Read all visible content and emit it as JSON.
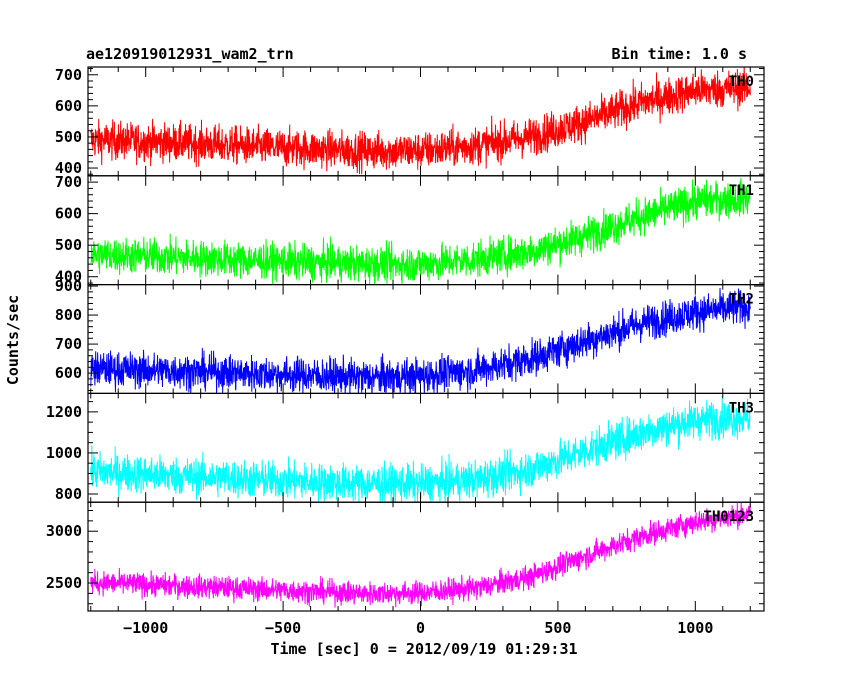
{
  "header": {
    "left_title": "ae120919012931_wam2_trn",
    "right_title": "Bin time: 1.0 s"
  },
  "chart_data": {
    "type": "line",
    "xlabel": "Time [sec] 0 = 2012/09/19 01:29:31",
    "ylabel": "Counts/sec",
    "xlim": [
      -1210,
      1250
    ],
    "x_ticks": [
      -1000,
      -500,
      0,
      500,
      1000
    ],
    "x_tick_labels": [
      "−1000",
      "−500",
      "0",
      "500",
      "1000"
    ],
    "x_range": [
      -1200,
      1200
    ],
    "bin_time": 1.0,
    "panels": [
      {
        "label": "TH0",
        "color": "#ff0000",
        "ylim": [
          375,
          725
        ],
        "y_ticks": [
          400,
          500,
          600,
          700
        ],
        "noise": 30,
        "trend": [
          [
            -1200,
            490
          ],
          [
            -900,
            482
          ],
          [
            -500,
            465
          ],
          [
            -200,
            455
          ],
          [
            0,
            455
          ],
          [
            200,
            472
          ],
          [
            400,
            500
          ],
          [
            600,
            550
          ],
          [
            800,
            610
          ],
          [
            1000,
            650
          ],
          [
            1200,
            660
          ]
        ]
      },
      {
        "label": "TH1",
        "color": "#00ff00",
        "ylim": [
          375,
          720
        ],
        "y_ticks": [
          400,
          500,
          600,
          700
        ],
        "noise": 28,
        "trend": [
          [
            -1200,
            470
          ],
          [
            -900,
            462
          ],
          [
            -500,
            448
          ],
          [
            -200,
            440
          ],
          [
            0,
            440
          ],
          [
            200,
            455
          ],
          [
            400,
            480
          ],
          [
            600,
            530
          ],
          [
            800,
            590
          ],
          [
            1000,
            640
          ],
          [
            1200,
            650
          ]
        ]
      },
      {
        "label": "TH2",
        "color": "#0000ff",
        "ylim": [
          530,
          905
        ],
        "y_ticks": [
          600,
          700,
          800,
          900
        ],
        "noise": 30,
        "trend": [
          [
            -1200,
            615
          ],
          [
            -900,
            608
          ],
          [
            -500,
            595
          ],
          [
            -200,
            585
          ],
          [
            0,
            590
          ],
          [
            200,
            610
          ],
          [
            400,
            650
          ],
          [
            600,
            710
          ],
          [
            800,
            770
          ],
          [
            1000,
            810
          ],
          [
            1200,
            830
          ]
        ]
      },
      {
        "label": "TH3",
        "color": "#00ffff",
        "ylim": [
          760,
          1290
        ],
        "y_ticks": [
          800,
          1000,
          1200
        ],
        "noise": 45,
        "trend": [
          [
            -1200,
            910
          ],
          [
            -900,
            890
          ],
          [
            -500,
            865
          ],
          [
            -200,
            850
          ],
          [
            0,
            850
          ],
          [
            200,
            870
          ],
          [
            400,
            920
          ],
          [
            600,
            1010
          ],
          [
            800,
            1100
          ],
          [
            1000,
            1160
          ],
          [
            1200,
            1175
          ]
        ]
      },
      {
        "label": "TH0123",
        "color": "#ff00ff",
        "ylim": [
          2230,
          3280
        ],
        "y_ticks": [
          2500,
          3000
        ],
        "noise": 55,
        "trend": [
          [
            -1200,
            2505
          ],
          [
            -900,
            2475
          ],
          [
            -500,
            2430
          ],
          [
            -200,
            2400
          ],
          [
            0,
            2405
          ],
          [
            200,
            2450
          ],
          [
            400,
            2560
          ],
          [
            600,
            2760
          ],
          [
            800,
            2950
          ],
          [
            1000,
            3090
          ],
          [
            1200,
            3170
          ]
        ]
      }
    ]
  }
}
